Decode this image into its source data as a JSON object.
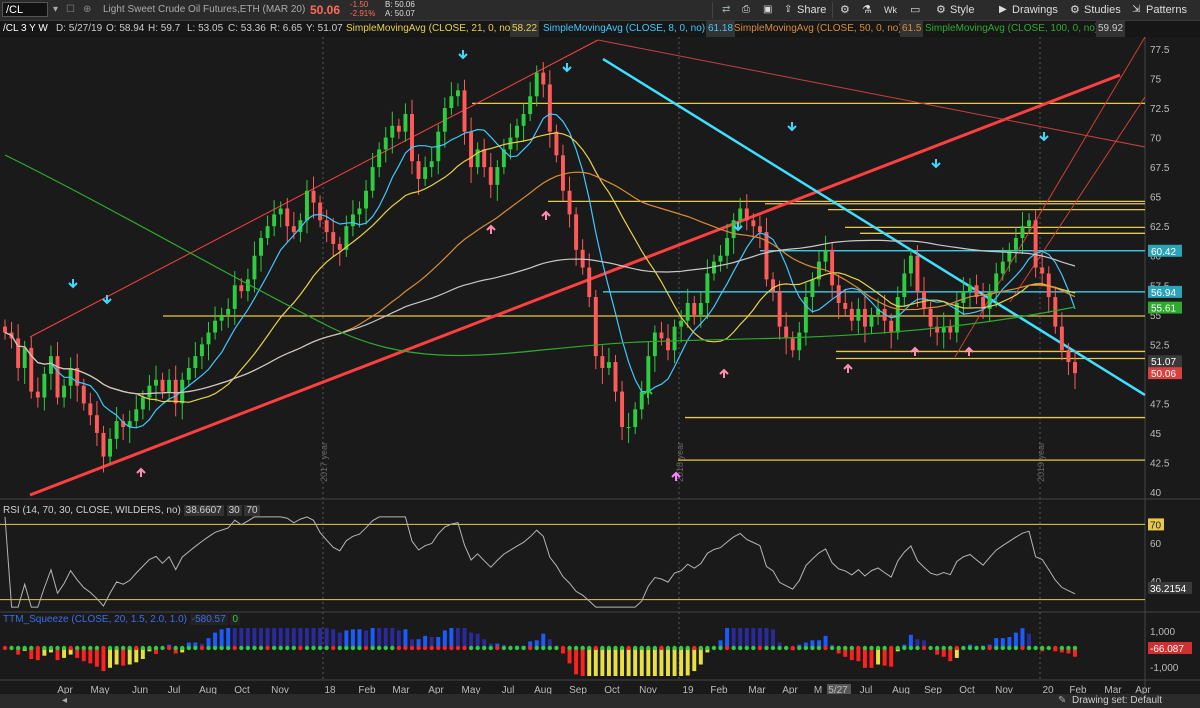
{
  "toolbar": {
    "symbol": "/CL",
    "description": "Light Sweet Crude Oil Futures,ETH (MAR 20)",
    "last": "50.06",
    "change": "-1.50",
    "change_pct": "-2.91%",
    "bid": "B: 50.06",
    "ask": "A: 50.07",
    "share_label": "Share",
    "wk_label": "Wk",
    "style_label": "Style",
    "drawings_label": "Drawings",
    "studies_label": "Studies",
    "patterns_label": "Patterns"
  },
  "legend": {
    "chart_id": "/CL 3 Y W",
    "date": "D: 5/27/19",
    "open": "O: 58.94",
    "high": "H: 59.7",
    "low": "L: 53.05",
    "close": "C: 53.36",
    "range": "R: 6.65",
    "vol": "Y: 51.07",
    "sma21_label": "SimpleMovingAvg (CLOSE, 21, 0, no)",
    "sma21_value": "58.22",
    "sma8_label": "SimpleMovingAvg (CLOSE, 8, 0, no)",
    "sma8_value": "61.18",
    "sma50_label": "SimpleMovingAvg (CLOSE, 50, 0, no)",
    "sma50_value": "61.5",
    "sma100_label": "SimpleMovingAvg (CLOSE, 100, 0, no)",
    "sma100_value": "59.92"
  },
  "colors": {
    "up": "#2ecc40",
    "down": "#ff5a5a",
    "sma8": "#40c8ff",
    "sma21": "#e8d24a",
    "sma50": "#d98c3a",
    "sma100": "#c8c8c8",
    "sma200": "#2faa2f",
    "hline": "#e8c84a",
    "trend_red": "#ff4040",
    "trend_cyan": "#40e0ff"
  },
  "price_axis": {
    "ticks": [
      "77.5",
      "75",
      "72.5",
      "70",
      "67.5",
      "65",
      "62.5",
      "60",
      "57.5",
      "55",
      "52.5",
      "50",
      "47.5",
      "45",
      "42.5",
      "40"
    ],
    "tags": [
      {
        "value": "60.42",
        "color": "#2ba4b8"
      },
      {
        "value": "56.94",
        "color": "#2ba4b8"
      },
      {
        "value": "55.61",
        "color": "#2faa2f"
      },
      {
        "value": "51.07",
        "color": "#3a3a3a"
      },
      {
        "value": "50.06",
        "color": "#d94040"
      }
    ]
  },
  "time_axis": {
    "labels": [
      "Apr",
      "May",
      "Jun",
      "Jul",
      "Aug",
      "Oct",
      "Nov",
      "18",
      "Feb",
      "Mar",
      "Apr",
      "May",
      "Jul",
      "Aug",
      "Sep",
      "Oct",
      "Nov",
      "19",
      "Feb",
      "Mar",
      "Apr",
      "M",
      "5/27",
      "Jul",
      "Aug",
      "Sep",
      "Oct",
      "Nov",
      "20",
      "Feb",
      "Mar",
      "Apr"
    ]
  },
  "year_marks": [
    "2017 year",
    "2018 year",
    "2019 year"
  ],
  "rsi": {
    "title": "RSI (14, 70, 30, CLOSE, WILDERS, no)",
    "value": "38.6607",
    "ob": "30",
    "os": "70",
    "axis": [
      "70",
      "60",
      "40"
    ],
    "tag": "36.2154"
  },
  "ttm": {
    "title": "TTM_Squeeze (CLOSE, 20, 1.5, 2.0, 1.0)",
    "value": "-580.57",
    "zero": "0",
    "axis": [
      "1,000",
      "-1,000"
    ],
    "tag": "-66.087"
  },
  "status": {
    "drawing_set": "Drawing set: Default"
  },
  "chart_data": {
    "type": "candlestick",
    "title": "/CL 3 Y W",
    "ylim": [
      40,
      77.5
    ],
    "x_range": [
      "2017-Mar",
      "2020-Apr"
    ],
    "closes": [
      53.5,
      53.0,
      50.5,
      52.2,
      48.5,
      48.0,
      50.0,
      51.5,
      48.0,
      49.0,
      50.5,
      49.0,
      47.5,
      46.5,
      45.0,
      43.0,
      44.5,
      46.0,
      45.5,
      46.0,
      47.0,
      48.0,
      49.0,
      49.5,
      48.5,
      49.5,
      47.5,
      49.5,
      50.5,
      51.5,
      52.5,
      53.5,
      54.5,
      55.0,
      55.5,
      57.5,
      57.0,
      58.0,
      60.0,
      61.5,
      62.5,
      63.5,
      64.0,
      62.5,
      62.0,
      63.0,
      65.5,
      64.5,
      63.0,
      62.0,
      61.0,
      60.5,
      62.5,
      63.5,
      64.0,
      65.5,
      67.5,
      69.0,
      70.0,
      71.0,
      70.5,
      72.0,
      68.0,
      66.5,
      67.5,
      68.0,
      70.5,
      72.5,
      73.5,
      74.0,
      70.5,
      67.5,
      69.0,
      67.5,
      66.0,
      67.5,
      69.0,
      70.0,
      71.0,
      72.0,
      73.5,
      75.5,
      74.5,
      70.5,
      68.5,
      65.5,
      63.5,
      60.5,
      59.0,
      56.5,
      51.5,
      50.5,
      51.0,
      48.5,
      45.5,
      45.5,
      47.0,
      48.5,
      51.5,
      53.5,
      53.0,
      52.0,
      54.0,
      54.5,
      56.0,
      55.0,
      56.0,
      58.5,
      59.5,
      60.0,
      61.5,
      63.0,
      64.0,
      63.0,
      62.5,
      62.0,
      58.0,
      57.0,
      54.0,
      53.0,
      52.0,
      53.5,
      56.5,
      58.0,
      59.5,
      60.5,
      57.5,
      56.0,
      55.5,
      54.5,
      55.5,
      54.0,
      55.0,
      55.5,
      54.5,
      53.5,
      56.5,
      58.5,
      60.0,
      57.0,
      55.5,
      54.0,
      53.5,
      54.0,
      53.5,
      56.0,
      57.0,
      57.5,
      56.5,
      55.5,
      57.0,
      58.5,
      59.5,
      60.5,
      61.5,
      62.5,
      63.0,
      59.0,
      58.5,
      56.5,
      54.0,
      52.0,
      51.0,
      50.06
    ],
    "horizontal_levels": [
      72.9,
      64.6,
      64.4,
      63.9,
      62.4,
      61.9,
      60.42,
      56.94,
      54.9,
      51.9,
      51.3,
      46.3,
      42.7
    ],
    "moving_averages": [
      {
        "name": "SimpleMovingAvg (CLOSE, 8, 0, no)",
        "period": 8,
        "last": 61.18
      },
      {
        "name": "SimpleMovingAvg (CLOSE, 21, 0, no)",
        "period": 21,
        "last": 58.22
      },
      {
        "name": "SimpleMovingAvg (CLOSE, 50, 0, no)",
        "period": 50,
        "last": 61.5
      },
      {
        "name": "SimpleMovingAvg (CLOSE, 100, 0, no)",
        "period": 100,
        "last": 59.92
      }
    ],
    "rsi_levels": [
      30,
      70
    ],
    "rsi_last": 36.2154,
    "ttm_last": -66.087
  }
}
